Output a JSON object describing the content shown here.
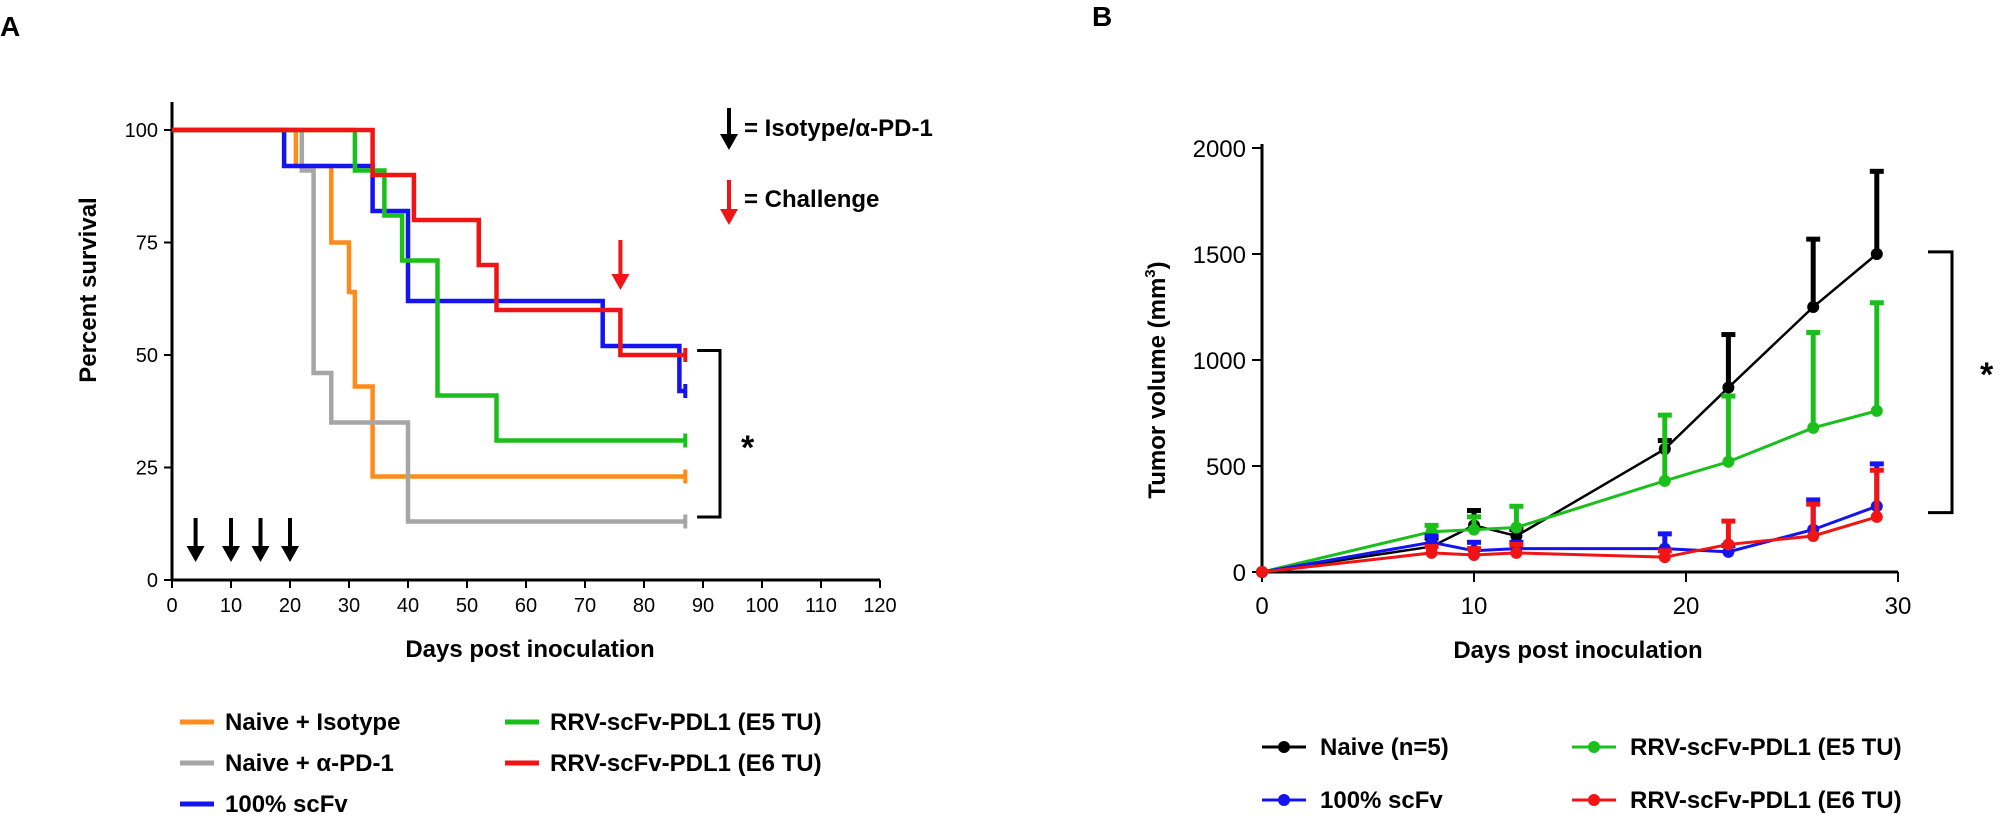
{
  "chart_data": [
    {
      "panel_label": "A",
      "type": "line",
      "subtype": "kaplan-meier step",
      "xlabel": "Days post inoculation",
      "ylabel": "Percent survival",
      "xlim": [
        0,
        120
      ],
      "ylim": [
        0,
        100
      ],
      "x_ticks": [
        "0",
        "10",
        "20",
        "30",
        "40",
        "50",
        "60",
        "70",
        "80",
        "90",
        "100",
        "110",
        "120"
      ],
      "y_ticks": [
        "0",
        "25",
        "50",
        "75",
        "100"
      ],
      "grid": false,
      "legend_position": "bottom",
      "significance": "*",
      "annotations": {
        "black_arrow_label": "= Isotype/α-PD-1",
        "red_arrow_label": "= Challenge",
        "treatment_arrow_days": [
          4,
          10,
          15,
          20
        ],
        "challenge_arrow_day": 76
      },
      "series": [
        {
          "name": "Naive + Isotype",
          "color": "#ff8c1a",
          "steps": [
            [
              0,
              100
            ],
            [
              21,
              92
            ],
            [
              27,
              75
            ],
            [
              30,
              64
            ],
            [
              31,
              43
            ],
            [
              34,
              23
            ],
            [
              87,
              23
            ]
          ]
        },
        {
          "name": "Naive + α-PD-1",
          "color": "#a6a6a6",
          "steps": [
            [
              0,
              100
            ],
            [
              22,
              91
            ],
            [
              24,
              46
            ],
            [
              27,
              35
            ],
            [
              40,
              13
            ],
            [
              87,
              13
            ]
          ]
        },
        {
          "name": "100% scFv",
          "color": "#1414f0",
          "steps": [
            [
              0,
              100
            ],
            [
              19,
              92
            ],
            [
              34,
              82
            ],
            [
              40,
              62
            ],
            [
              73,
              52
            ],
            [
              86,
              42
            ],
            [
              87,
              42
            ]
          ]
        },
        {
          "name": "RRV-scFv-PDL1 (E5 TU)",
          "color": "#1bbf1b",
          "steps": [
            [
              0,
              100
            ],
            [
              31,
              91
            ],
            [
              36,
              81
            ],
            [
              39,
              71
            ],
            [
              45,
              41
            ],
            [
              55,
              31
            ],
            [
              87,
              31
            ]
          ]
        },
        {
          "name": "RRV-scFv-PDL1 (E6 TU)",
          "color": "#f01414",
          "steps": [
            [
              0,
              100
            ],
            [
              34,
              90
            ],
            [
              41,
              80
            ],
            [
              52,
              70
            ],
            [
              55,
              60
            ],
            [
              76,
              50
            ],
            [
              87,
              50
            ]
          ]
        }
      ]
    },
    {
      "panel_label": "B",
      "type": "line",
      "xlabel": "Days post inoculation",
      "ylabel_main": "Tumor volume (mm",
      "ylabel_sup": "3",
      "ylabel_end": ")",
      "xlim": [
        0,
        30
      ],
      "ylim": [
        0,
        2000
      ],
      "x_ticks": [
        "0",
        "10",
        "20",
        "30"
      ],
      "y_ticks": [
        "0",
        "500",
        "1000",
        "1500",
        "2000"
      ],
      "grid": false,
      "legend_position": "bottom",
      "significance": "*",
      "x": [
        0,
        8,
        10,
        12,
        19,
        22,
        26,
        29
      ],
      "series": [
        {
          "name": "Naive (n=5)",
          "color": "#000000",
          "values": [
            0,
            120,
            220,
            170,
            580,
            870,
            1250,
            1500
          ],
          "error": [
            0,
            40,
            70,
            30,
            40,
            250,
            320,
            390
          ]
        },
        {
          "name": "100% scFv",
          "color": "#1414f0",
          "values": [
            0,
            140,
            100,
            110,
            110,
            95,
            200,
            310
          ],
          "error": [
            0,
            30,
            40,
            30,
            70,
            30,
            140,
            200
          ]
        },
        {
          "name": "RRV-scFv-PDL1 (E5 TU)",
          "color": "#1bbf1b",
          "values": [
            0,
            190,
            200,
            210,
            430,
            520,
            680,
            760
          ],
          "error": [
            0,
            30,
            60,
            100,
            310,
            310,
            450,
            510
          ]
        },
        {
          "name": "RRV-scFv-PDL1 (E6 TU)",
          "color": "#f01414",
          "values": [
            0,
            90,
            80,
            90,
            70,
            130,
            170,
            260
          ],
          "error": [
            0,
            30,
            30,
            40,
            30,
            110,
            150,
            220
          ]
        }
      ]
    }
  ]
}
